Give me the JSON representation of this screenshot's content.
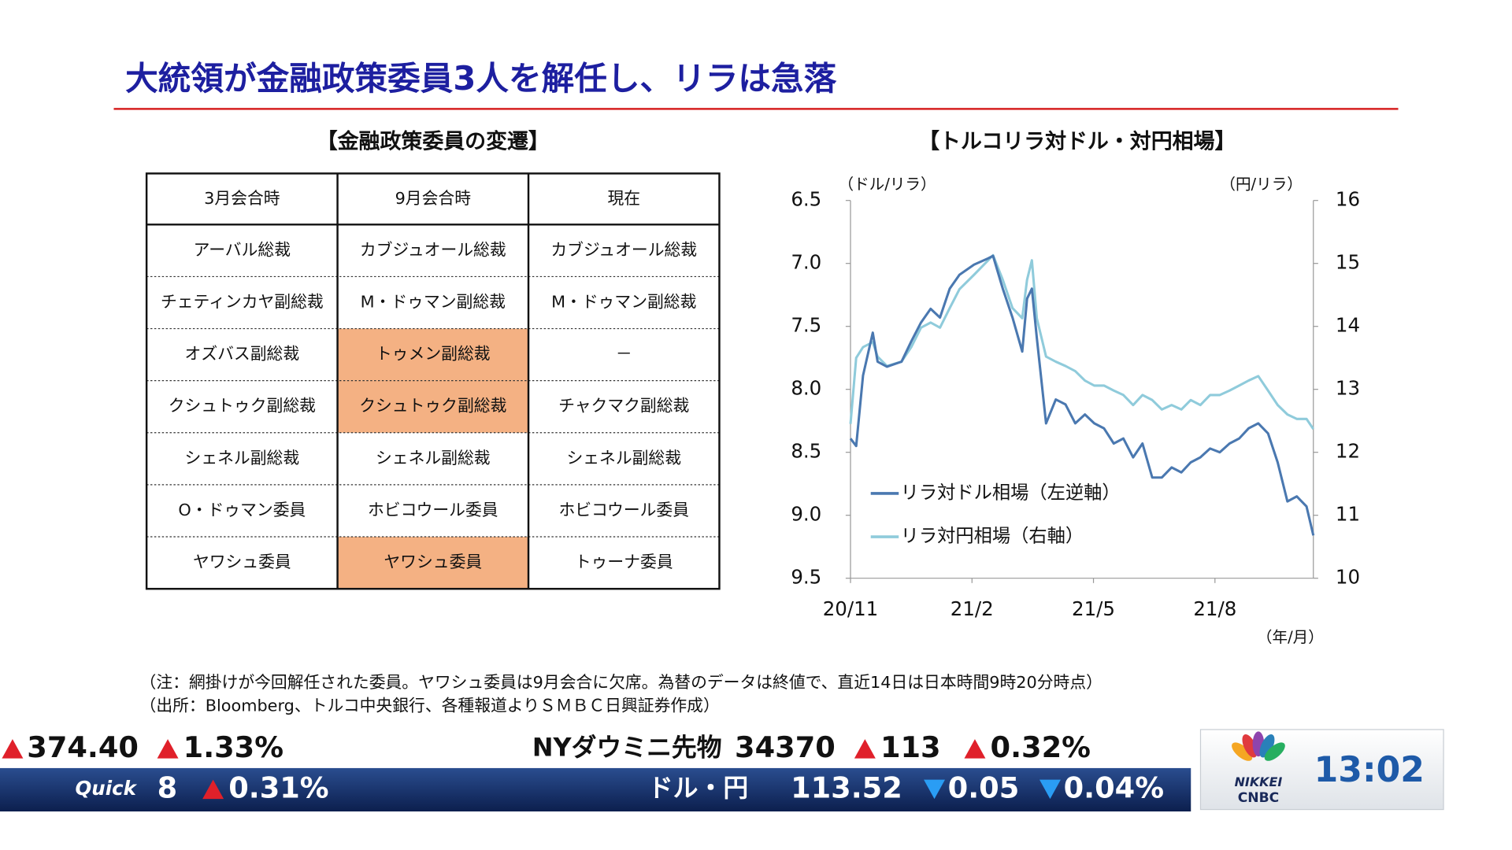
{
  "header": {
    "title": "大統領が金融政策委員3人を解任し、リラは急落"
  },
  "table": {
    "title": "【金融政策委員の変遷】",
    "columns": [
      "3月会合時",
      "9月会合時",
      "現在"
    ],
    "rows": [
      [
        "アーバル総裁",
        "カブジュオール総裁",
        "カブジュオール総裁"
      ],
      [
        "チェティンカヤ副総裁",
        "M・ドゥマン副総裁",
        "M・ドゥマン副総裁"
      ],
      [
        "オズバス副総裁",
        "トゥメン副総裁",
        "－"
      ],
      [
        "クシュトゥク副総裁",
        "クシュトゥク副総裁",
        "チャクマク副総裁"
      ],
      [
        "シェネル副総裁",
        "シェネル副総裁",
        "シェネル副総裁"
      ],
      [
        "O・ドゥマン委員",
        "ホビコウール委員",
        "ホビコウール委員"
      ],
      [
        "ヤワシュ委員",
        "ヤワシュ委員",
        "トゥーナ委員"
      ]
    ],
    "highlight_color": "#f4b183",
    "highlighted_cells": [
      [
        2,
        1
      ],
      [
        3,
        1
      ],
      [
        6,
        1
      ]
    ]
  },
  "chart_data": {
    "type": "line",
    "title": "【トルコリラ対ドル・対円相場】",
    "y_label": "（ドル/リラ）",
    "y2_label": "（円/リラ）",
    "x_label": "（年/月）",
    "x": [
      0,
      0.14,
      0.31,
      0.55,
      0.67,
      0.9,
      1.26,
      1.5,
      1.74,
      1.98,
      2.21,
      2.45,
      2.69,
      3.05,
      3.4,
      3.52,
      3.76,
      4,
      4.24,
      4.36,
      4.48,
      4.6,
      4.83,
      5.07,
      5.31,
      5.55,
      5.79,
      6.02,
      6.26,
      6.5,
      6.74,
      6.98,
      7.21,
      7.45,
      7.69,
      7.93,
      8.17,
      8.4,
      8.64,
      8.88,
      9.12,
      9.36,
      9.6,
      9.83,
      10.07,
      10.31,
      10.55,
      10.79,
      11.02,
      11.26,
      11.43
    ],
    "series": [
      {
        "name": "リラ対ドル相場（左逆軸）",
        "color": "#4a78b0",
        "values": [
          8.39,
          8.45,
          7.89,
          7.55,
          7.78,
          7.82,
          7.78,
          7.62,
          7.47,
          7.36,
          7.43,
          7.2,
          7.09,
          7.01,
          6.96,
          6.94,
          7.2,
          7.43,
          7.7,
          7.28,
          7.2,
          7.59,
          8.27,
          8.08,
          8.12,
          8.27,
          8.2,
          8.27,
          8.31,
          8.43,
          8.39,
          8.54,
          8.43,
          8.7,
          8.7,
          8.62,
          8.66,
          8.58,
          8.54,
          8.47,
          8.5,
          8.43,
          8.39,
          8.31,
          8.27,
          8.35,
          8.58,
          8.89,
          8.85,
          8.93,
          9.16
        ]
      },
      {
        "name": "リラ対円相場（右軸）",
        "color": "#8fcbdb",
        "axis": "y2",
        "values": [
          12.45,
          13.5,
          13.67,
          13.75,
          13.52,
          13.37,
          13.44,
          13.67,
          13.98,
          14.06,
          13.98,
          14.29,
          14.59,
          14.82,
          15.05,
          15.13,
          14.74,
          14.29,
          14.13,
          14.74,
          15.05,
          14.13,
          13.52,
          13.44,
          13.37,
          13.29,
          13.14,
          13.06,
          13.06,
          12.98,
          12.91,
          12.75,
          12.91,
          12.83,
          12.68,
          12.75,
          12.68,
          12.83,
          12.75,
          12.91,
          12.91,
          12.98,
          13.06,
          13.14,
          13.21,
          12.98,
          12.75,
          12.6,
          12.53,
          12.53,
          12.37
        ]
      }
    ],
    "xlim": [
      0,
      11.43
    ],
    "xticks": [
      {
        "value": 0,
        "label": "20/11"
      },
      {
        "value": 3,
        "label": "21/2"
      },
      {
        "value": 6,
        "label": "21/5"
      },
      {
        "value": 9,
        "label": "21/8"
      }
    ],
    "ylim": [
      6.5,
      9.5
    ],
    "y_inverted": true,
    "yticks": [
      6.5,
      {
        "value": 7,
        "label": "7.0"
      },
      7.5,
      {
        "value": 8,
        "label": "8.0"
      },
      8.5,
      {
        "value": 9,
        "label": "9.0"
      },
      9.5
    ],
    "y2lim": [
      10,
      16
    ],
    "y2ticks": [
      10,
      11,
      12,
      13,
      14,
      15,
      16
    ],
    "grid": false
  },
  "notes": [
    "（注：網掛けが今回解任された委員。ヤワシュ委員は9月会合に欠席。為替のデータは終値で、直近14日は日本時間9時20分時点）",
    "（出所：Bloomberg、トルコ中央銀行、各種報道よりＳＭＢＣ日興証券作成）"
  ],
  "ticker": {
    "top": [
      "374.40",
      "1.33%",
      "NYダウミニ先物",
      "34370",
      "113",
      "0.32%"
    ],
    "bottom": [
      "Quick",
      "8",
      "0.31%",
      "ドル・円",
      "113.52",
      "0.05",
      "0.04%"
    ]
  },
  "logo": {
    "brand": [
      "NIKKEI",
      "CNBC"
    ],
    "time": "13:02"
  }
}
